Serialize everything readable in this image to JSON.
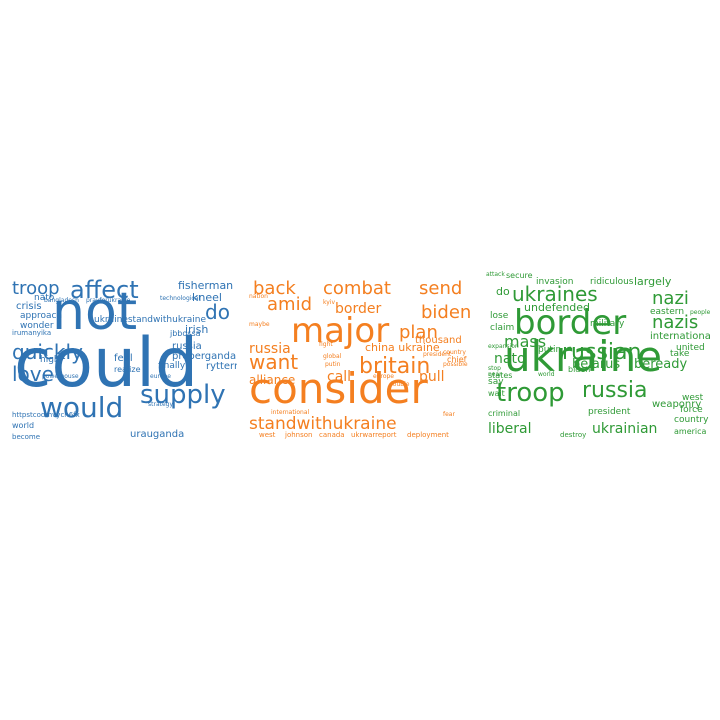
{
  "clouds": [
    {
      "id": "blue",
      "color": "#2f73b3",
      "words": [
        "not",
        "could",
        "would",
        "supply",
        "affect",
        "troop",
        "quickly",
        "love",
        "do",
        "fisherman",
        "kneel",
        "irish",
        "russia",
        "properganda",
        "rytterm",
        "finally",
        "ukrainestandwithukraine",
        "jbbossa",
        "feel",
        "realize",
        "high",
        "irumanyika",
        "approach",
        "wonder",
        "crisis",
        "nato",
        "bangladesh",
        "prayforukraine",
        "technological",
        "strategy",
        "world",
        "become",
        "httpstcodmvych6fx",
        "urauganda",
        "powerhouse",
        "europe"
      ]
    },
    {
      "id": "orange",
      "color": "#f47f20",
      "words": [
        "consider",
        "major",
        "standwithukraine",
        "britain",
        "want",
        "amid",
        "back",
        "combat",
        "send",
        "biden",
        "plan",
        "border",
        "russia",
        "alliance",
        "call",
        "pull",
        "china ukraine",
        "thousand",
        "chief",
        "johnson",
        "canada",
        "ukrwarreport",
        "deployment",
        "international",
        "west",
        "president",
        "global",
        "putin",
        "kyiv",
        "nation",
        "maybe",
        "europe",
        "fight",
        "double",
        "fear",
        "country",
        "possible"
      ]
    },
    {
      "id": "green",
      "color": "#2f9a36",
      "words": [
        "ukraine",
        "border",
        "troop",
        "russia",
        "russian",
        "ukraines",
        "nazi",
        "nazis",
        "mass",
        "nato",
        "liberal",
        "ukrainian",
        "belarus",
        "beready",
        "undefended",
        "largely",
        "do",
        "lose",
        "claim",
        "states",
        "putin",
        "say",
        "criminal",
        "wait",
        "attack",
        "president",
        "weaponry",
        "country",
        "america",
        "west",
        "force",
        "international",
        "united",
        "eastern",
        "military",
        "invasion",
        "ridiculous",
        "secure",
        "biden",
        "world",
        "take",
        "people",
        "destroy",
        "expansion",
        "stop",
        "near"
      ]
    }
  ]
}
